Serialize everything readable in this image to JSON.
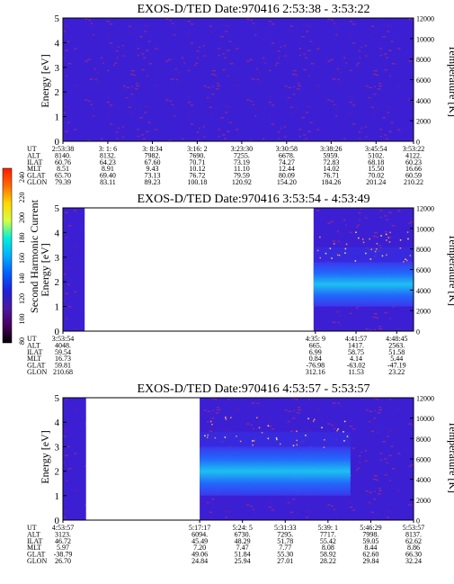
{
  "colorbar": {
    "label": "Second Harmonic Current",
    "ticks": [
      "240",
      "220",
      "200",
      "180",
      "160",
      "140",
      "120",
      "100",
      "80"
    ],
    "stops": [
      "#ff1a00",
      "#ff6a00",
      "#ffd700",
      "#d6ff40",
      "#00f0d8",
      "#00b0ff",
      "#0060ff",
      "#2020d8",
      "#4a1aa0",
      "#4a0060",
      "#000000"
    ]
  },
  "chart_data": [
    {
      "type": "heatmap",
      "title": "EXOS-D/TED   Date:970416  2:53:38 - 3:53:22",
      "ylabel": "Energy [eV]",
      "y2label": "Temperature [K]",
      "ylim": [
        0,
        5
      ],
      "yticks": [
        "0",
        "1",
        "2",
        "3",
        "4",
        "5"
      ],
      "y2lim": [
        0,
        12000
      ],
      "y2ticks": [
        "0",
        "2000",
        "4000",
        "6000",
        "8000",
        "10000",
        "12000"
      ],
      "data_coverage": [
        [
          0.0,
          1.0
        ]
      ],
      "band": null,
      "table": {
        "row_labels": [
          "UT",
          "ALT",
          "ILAT",
          "MLT",
          "GLAT",
          "GLON"
        ],
        "columns": [
          {
            "f": 0.0,
            "v": [
              "2:53:38",
              "8140.",
              "60.76",
              "8.51",
              "65.70",
              "79.39"
            ]
          },
          {
            "f": 0.128,
            "v": [
              "3: 1: 6",
              "8132.",
              "64.23",
              "8.91",
              "69.40",
              "83.11"
            ]
          },
          {
            "f": 0.255,
            "v": [
              "3: 8:34",
              "7982.",
              "67.60",
              "9.43",
              "73.13",
              "89.23"
            ]
          },
          {
            "f": 0.383,
            "v": [
              "3:16: 2",
              "7690.",
              "70.71",
              "10.12",
              "76.72",
              "100.18"
            ]
          },
          {
            "f": 0.51,
            "v": [
              "3:23:30",
              "7255.",
              "73.19",
              "11.10",
              "79.59",
              "120.92"
            ]
          },
          {
            "f": 0.638,
            "v": [
              "3:30:58",
              "6678.",
              "74.27",
              "12.44",
              "80.09",
              "154.20"
            ]
          },
          {
            "f": 0.765,
            "v": [
              "3:38:26",
              "5959.",
              "72.83",
              "14.02",
              "76.71",
              "184.26"
            ]
          },
          {
            "f": 0.893,
            "v": [
              "3:45:54",
              "5102.",
              "68.18",
              "15.50",
              "70.02",
              "201.24"
            ]
          },
          {
            "f": 1.0,
            "v": [
              "3:53:22",
              "4122.",
              "60.23",
              "16.66",
              "60.59",
              "210.22"
            ]
          }
        ]
      }
    },
    {
      "type": "heatmap",
      "title": "EXOS-D/TED   Date:970416  3:53:54 - 4:53:49",
      "ylabel": "Energy [eV]",
      "y2label": "Temperature [K]",
      "ylim": [
        0,
        5
      ],
      "yticks": [
        "0",
        "1",
        "2",
        "3",
        "4",
        "5"
      ],
      "y2lim": [
        0,
        12000
      ],
      "y2ticks": [
        "0",
        "2000",
        "4000",
        "6000",
        "8000",
        "10000",
        "12000"
      ],
      "data_coverage": [
        [
          0.0,
          0.062
        ],
        [
          0.715,
          1.0
        ]
      ],
      "band": {
        "from": 0.715,
        "to": 1.0,
        "center_ev": 1.9,
        "half_width_ev": 0.9
      },
      "table": {
        "row_labels": [
          "UT",
          "ALT",
          "ILAT",
          "MLT",
          "GLAT",
          "GLON"
        ],
        "columns": [
          {
            "f": 0.0,
            "v": [
              "3:53:54",
              "4048.",
              "59.54",
              "16.73",
              "59.81",
              "210.68"
            ]
          },
          {
            "f": 0.72,
            "v": [
              "4:35: 9",
              "665.",
              "6.99",
              "0.84",
              "-76.98",
              "312.16"
            ]
          },
          {
            "f": 0.836,
            "v": [
              "4:41:57",
              "1417.",
              "58.75",
              "4.14",
              "-63.02",
              "11.53"
            ]
          },
          {
            "f": 0.952,
            "v": [
              "4:48:45",
              "2563.",
              "51.58",
              "5.44",
              "-47.19",
              "23.22"
            ]
          }
        ]
      }
    },
    {
      "type": "heatmap",
      "title": "EXOS-D/TED   Date:970416  4:53:57 - 5:53:57",
      "ylabel": "Energy [eV]",
      "y2label": "Temperature [K]",
      "ylim": [
        0,
        5
      ],
      "yticks": [
        "0",
        "1",
        "2",
        "3",
        "4",
        "5"
      ],
      "y2lim": [
        0,
        12000
      ],
      "y2ticks": [
        "0",
        "2000",
        "4000",
        "6000",
        "8000",
        "10000",
        "12000"
      ],
      "data_coverage": [
        [
          0.0,
          0.066
        ],
        [
          0.39,
          1.0
        ]
      ],
      "band": {
        "from": 0.39,
        "to": 0.82,
        "center_ev": 2.0,
        "half_width_ev": 1.0
      },
      "table": {
        "row_labels": [
          "UT",
          "ALT",
          "ILAT",
          "MLT",
          "GLAT",
          "GLON"
        ],
        "columns": [
          {
            "f": 0.0,
            "v": [
              "4:53:57",
              "3123.",
              "46.72",
              "5.97",
              "-38.79",
              "26.70"
            ]
          },
          {
            "f": 0.39,
            "v": [
              "5:17:17",
              "6094.",
              "45.49",
              "7.20",
              "49.06",
              "24.84"
            ]
          },
          {
            "f": 0.512,
            "v": [
              "5:24: 5",
              "6730.",
              "48.29",
              "7.47",
              "51.84",
              "25.94"
            ]
          },
          {
            "f": 0.634,
            "v": [
              "5:31:33",
              "7295.",
              "51.78",
              "7.77",
              "55.30",
              "27.01"
            ]
          },
          {
            "f": 0.756,
            "v": [
              "5:39: 1",
              "7717.",
              "55.42",
              "8.08",
              "58.92",
              "28.22"
            ]
          },
          {
            "f": 0.878,
            "v": [
              "5:46:29",
              "7998.",
              "59.05",
              "8.44",
              "62.60",
              "29.84"
            ]
          },
          {
            "f": 1.0,
            "v": [
              "5:53:57",
              "8137.",
              "62.62",
              "8.86",
              "66.30",
              "32.24"
            ]
          }
        ]
      }
    }
  ]
}
